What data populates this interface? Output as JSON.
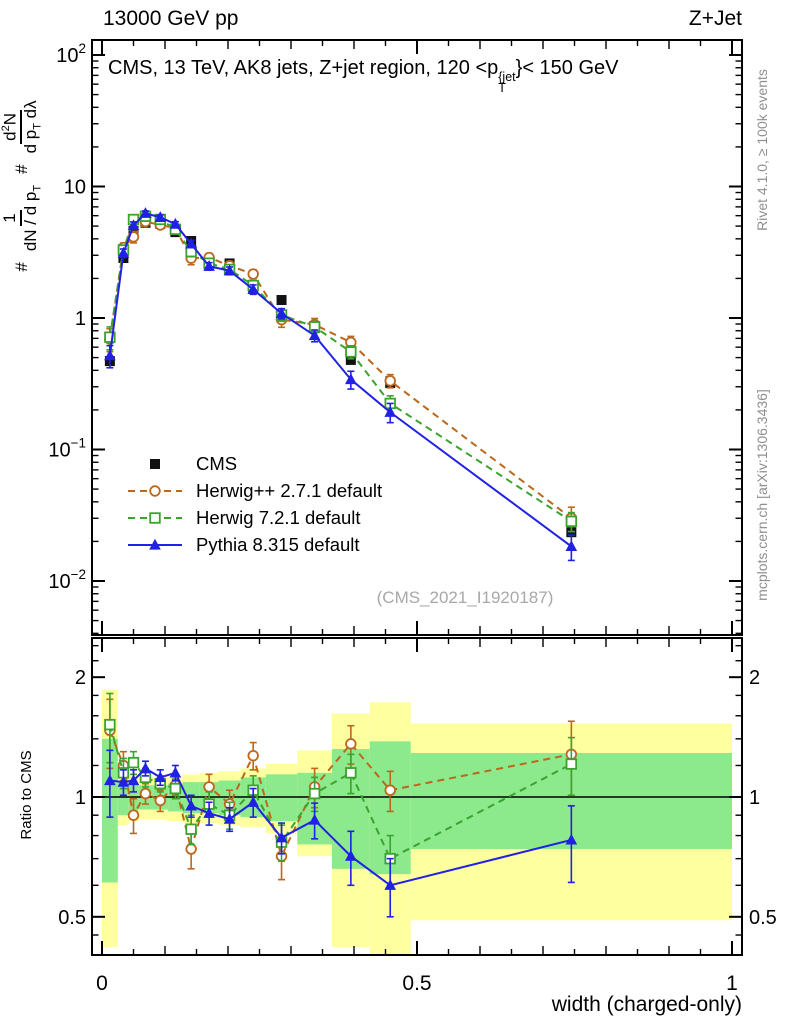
{
  "header": {
    "left": "13000 GeV pp",
    "right": "Z+Jet"
  },
  "title": {
    "pre": "CMS, 13 TeV, AK8 jets, Z+jet region, 120 <p",
    "sup": "{jet",
    "sub": "T",
    "post": "}< 150 GeV"
  },
  "ylabel": {
    "hash1": "#",
    "frac1": {
      "num": "1",
      "den_pre": "dN / d p",
      "den_sub": "T"
    },
    "hash2": "#",
    "frac2": {
      "num_pre": "d",
      "num_sup": "2",
      "num_post": "N",
      "den_pre": "d p",
      "den_sub": "T",
      "den_post": " dλ"
    }
  },
  "side": {
    "rivet": "Rivet 4.1.0, ≥ 100k events",
    "mcplots": "mcplots.cern.ch [arXiv:1306.3436]"
  },
  "watermark": "(CMS_2021_I1920187)",
  "ratio": {
    "ylabel": "Ratio to CMS"
  },
  "legend": {
    "items": [
      {
        "label": "CMS",
        "marker": "square-filled",
        "line": "none",
        "color": "#111111"
      },
      {
        "label": "Herwig++ 2.7.1 default",
        "marker": "circle-open",
        "line": "dashed",
        "color": "#bc671c"
      },
      {
        "label": "Herwig 7.2.1 default",
        "marker": "square-open",
        "line": "dashed",
        "color": "#3aa32e"
      },
      {
        "label": "Pythia 8.315 default",
        "marker": "triangle-filled",
        "line": "solid",
        "color": "#2121e6"
      }
    ]
  },
  "chart_data": {
    "type": "line",
    "title": "CMS, 13 TeV, AK8 jets, Z+jet region, 120 < pT{jet} < 150 GeV",
    "xlabel": "width (charged-only)",
    "ylabel": "# 1/(dN/dpT) # d2N/(dpT dlambda)",
    "ratio_ylabel": "Ratio to CMS",
    "x_ticks": [
      0,
      0.5,
      1
    ],
    "x_tick_labels": [
      "0",
      "0.5",
      "1"
    ],
    "main_y_ticks": [
      100,
      10,
      1,
      0.1,
      0.01
    ],
    "ratio_y_ticks": [
      2,
      1,
      0.5
    ],
    "main_y_range": [
      0.004,
      130
    ],
    "ratio_y_range": [
      0.401,
      2.51
    ],
    "x_frame_range": [
      -0.016,
      1.016
    ],
    "legend_position": "inside-left-middle",
    "grid": false,
    "bin_edges": [
      0,
      0.025,
      0.0425,
      0.0575,
      0.08,
      0.105,
      0.128,
      0.155,
      0.185,
      0.22,
      0.26,
      0.31,
      0.365,
      0.425,
      0.49,
      1.0
    ],
    "x": [
      0.0125,
      0.034,
      0.05,
      0.069,
      0.0925,
      0.1165,
      0.1415,
      0.17,
      0.2025,
      0.24,
      0.285,
      0.3375,
      0.395,
      0.4575,
      0.745
    ],
    "series": [
      {
        "name": "CMS",
        "role": "data",
        "color": "#111111",
        "marker": "square-filled",
        "line": "none",
        "values": [
          0.47,
          2.86,
          4.6,
          5.3,
          5.2,
          4.5,
          3.85,
          2.72,
          2.6,
          1.7,
          1.37,
          0.84,
          0.48,
          0.32,
          0.0235
        ],
        "err_frac": 0.04
      },
      {
        "name": "Herwig++ 2.7.1 default",
        "role": "mc",
        "color": "#bc671c",
        "marker": "circle-open",
        "line": "dashed",
        "ratio": [
          1.47,
          1.2,
          0.9,
          1.02,
          0.98,
          1.07,
          0.74,
          1.06,
          0.96,
          1.27,
          0.71,
          1.06,
          1.36,
          1.04,
          1.28
        ],
        "ratio_err": [
          0.29,
          0.1,
          0.09,
          0.06,
          0.06,
          0.06,
          0.08,
          0.08,
          0.08,
          0.1,
          0.09,
          0.12,
          0.15,
          0.12,
          0.27
        ]
      },
      {
        "name": "Herwig 7.2.1 default",
        "role": "mc",
        "color": "#3aa32e",
        "marker": "square-open",
        "line": "dashed",
        "ratio": [
          1.52,
          1.15,
          1.22,
          1.12,
          1.08,
          1.05,
          0.83,
          0.96,
          0.9,
          1.04,
          0.77,
          1.02,
          1.15,
          0.7,
          1.21
        ],
        "ratio_err": [
          0.3,
          0.1,
          0.08,
          0.06,
          0.05,
          0.06,
          0.07,
          0.07,
          0.07,
          0.09,
          0.08,
          0.1,
          0.13,
          0.1,
          0.2
        ]
      },
      {
        "name": "Pythia 8.315 default",
        "role": "mc",
        "color": "#2121e6",
        "marker": "triangle-filled",
        "line": "solid",
        "ratio": [
          1.1,
          1.09,
          1.1,
          1.18,
          1.12,
          1.15,
          0.95,
          0.91,
          0.88,
          0.97,
          0.79,
          0.875,
          0.71,
          0.6,
          0.78
        ],
        "ratio_err": [
          0.21,
          0.08,
          0.07,
          0.05,
          0.05,
          0.05,
          0.06,
          0.06,
          0.06,
          0.08,
          0.07,
          0.09,
          0.11,
          0.1,
          0.17
        ]
      }
    ],
    "bands": {
      "yellow": {
        "color": "#feff9e",
        "lo": [
          0.42,
          0.85,
          0.87,
          0.88,
          0.88,
          0.87,
          0.86,
          0.86,
          0.85,
          0.84,
          0.81,
          0.71,
          0.42,
          0.4,
          0.49
        ],
        "hi": [
          1.86,
          1.16,
          1.14,
          1.12,
          1.12,
          1.13,
          1.14,
          1.15,
          1.16,
          1.18,
          1.21,
          1.31,
          1.62,
          1.73,
          1.53
        ]
      },
      "green": {
        "color": "#8ce98c",
        "lo": [
          0.61,
          0.9,
          0.92,
          0.93,
          0.93,
          0.92,
          0.91,
          0.91,
          0.9,
          0.89,
          0.87,
          0.76,
          0.66,
          0.64,
          0.74
        ],
        "hi": [
          1.4,
          1.1,
          1.08,
          1.07,
          1.07,
          1.08,
          1.09,
          1.09,
          1.1,
          1.12,
          1.14,
          1.15,
          1.32,
          1.38,
          1.29
        ]
      }
    }
  }
}
